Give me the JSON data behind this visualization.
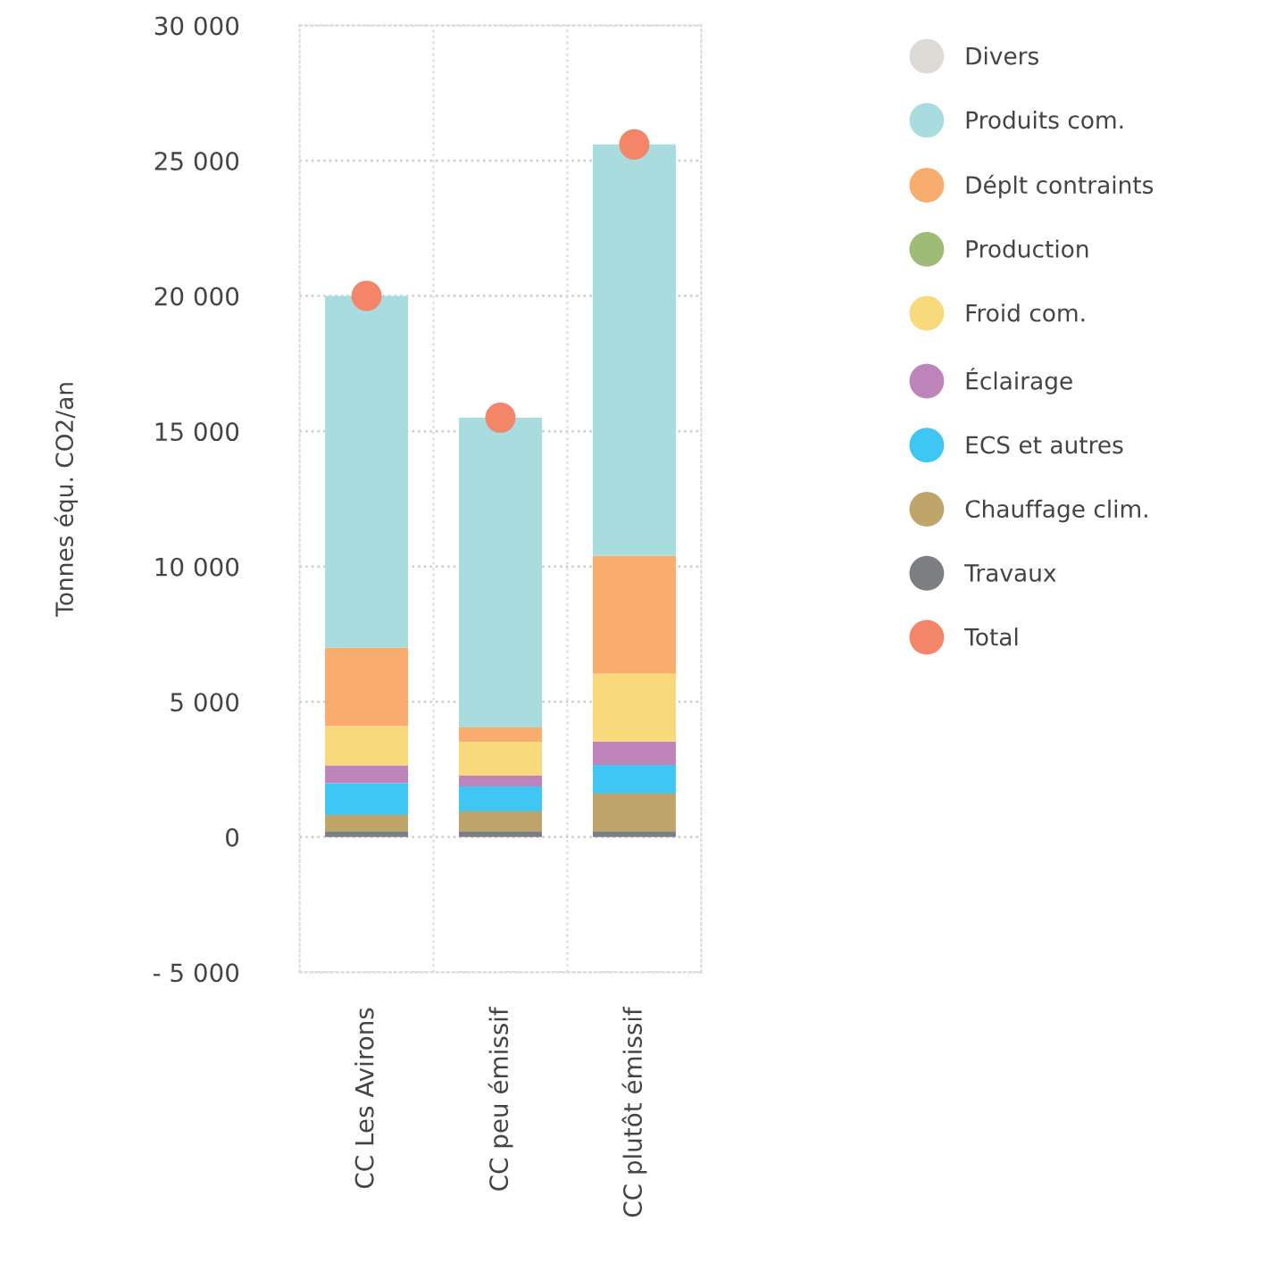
{
  "chart_data": {
    "type": "bar",
    "stacked": true,
    "ylabel": "Tonnes équ. CO2/an",
    "categories": [
      "CC Les Avirons",
      "CC peu émissif",
      "CC plutôt émissif"
    ],
    "series": [
      {
        "name": "Travaux",
        "color": "#7d7e82",
        "values": [
          220,
          220,
          220
        ]
      },
      {
        "name": "Chauffage clim.",
        "color": "#bfa569",
        "values": [
          600,
          730,
          1390
        ]
      },
      {
        "name": "ECS et autres",
        "color": "#3fc6f2",
        "values": [
          1170,
          920,
          1060
        ]
      },
      {
        "name": "Éclairage",
        "color": "#bc84b9",
        "values": [
          660,
          400,
          860
        ]
      },
      {
        "name": "Froid com.",
        "color": "#f8d97c",
        "values": [
          1450,
          1250,
          2510
        ]
      },
      {
        "name": "Production",
        "color": "#9fbb78",
        "values": [
          0,
          0,
          0
        ]
      },
      {
        "name": "Déplt contraints",
        "color": "#f8ad6f",
        "values": [
          2900,
          530,
          4360
        ]
      },
      {
        "name": "Produits com.",
        "color": "#a9dcdf",
        "values": [
          13000,
          11450,
          15200
        ]
      },
      {
        "name": "Divers",
        "color": "#dedbd6",
        "values": [
          0,
          0,
          0
        ]
      },
      {
        "name": "Total",
        "type": "scatter",
        "color": "#f38668",
        "x": [
          "CC Les Avirons",
          "CC peu émissif",
          "CC plutôt émissif"
        ],
        "values": [
          20000,
          15500,
          25600
        ]
      }
    ],
    "ylim": [
      -5000,
      30000
    ],
    "yticks": [
      {
        "value": -5000,
        "label": "- 5 000"
      },
      {
        "value": 0,
        "label": "0"
      },
      {
        "value": 5000,
        "label": "5 000"
      },
      {
        "value": 10000,
        "label": "10 000"
      },
      {
        "value": 15000,
        "label": "15 000"
      },
      {
        "value": 20000,
        "label": "20 000"
      },
      {
        "value": 25000,
        "label": "25 000"
      },
      {
        "value": 30000,
        "label": "30 000"
      }
    ],
    "grid": true,
    "legend": "right",
    "marker": "circle"
  }
}
